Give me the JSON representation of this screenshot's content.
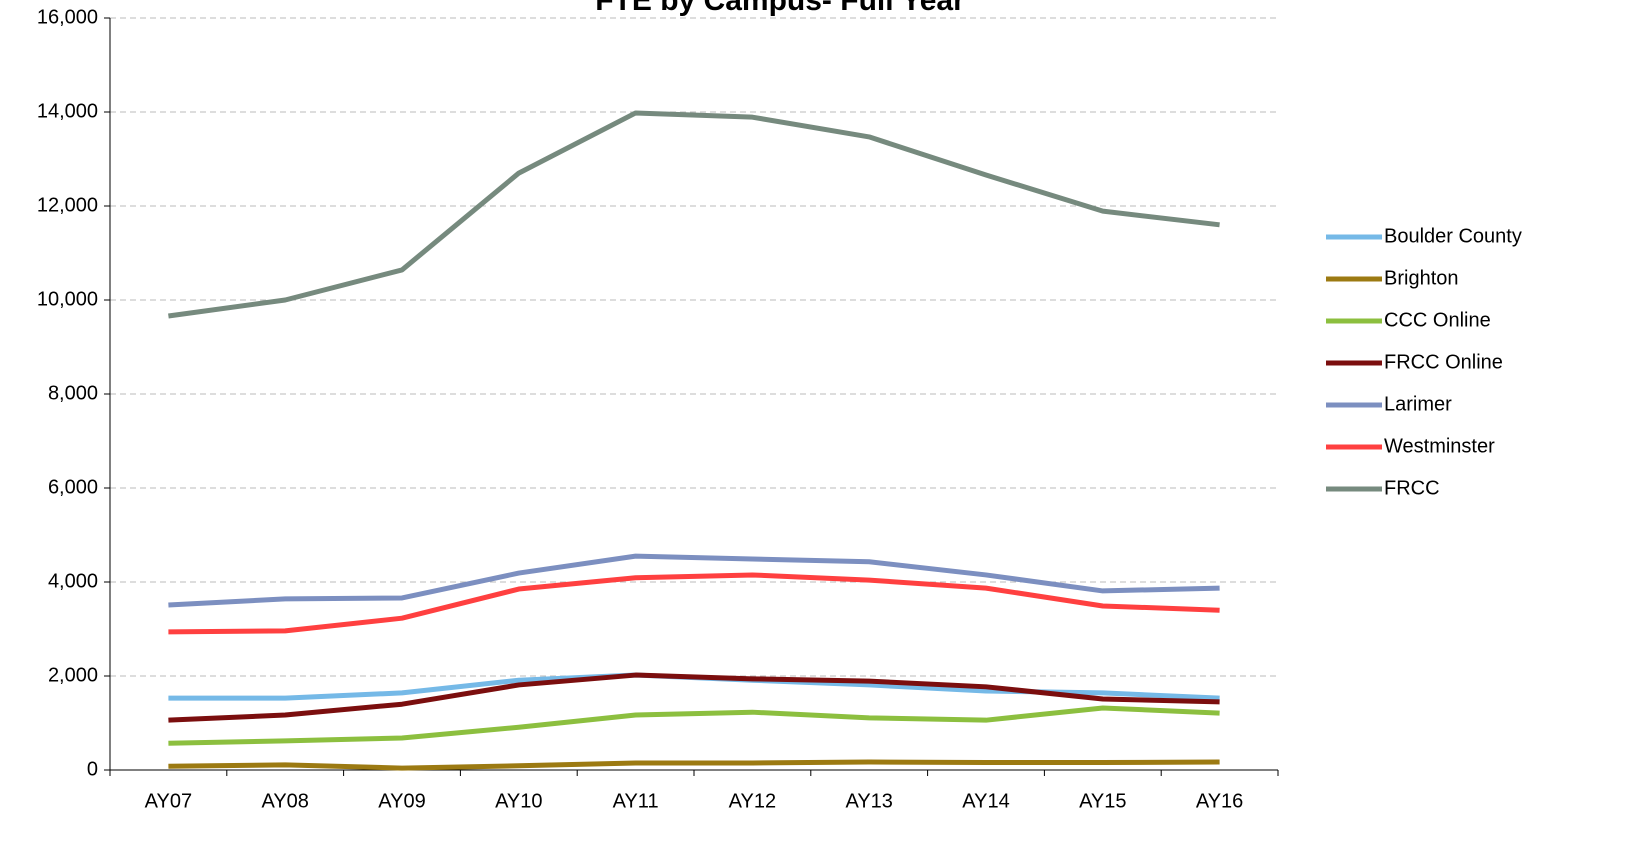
{
  "chart_data": {
    "type": "line",
    "title": "FTE by Campus- Full Year",
    "categories": [
      "AY07",
      "AY08",
      "AY09",
      "AY10",
      "AY11",
      "AY12",
      "AY13",
      "AY14",
      "AY15",
      "AY16"
    ],
    "ylim": [
      0,
      16000
    ],
    "yticks": [
      0,
      {
        "value": 2000,
        "label": "2,000"
      },
      {
        "value": 4000,
        "label": "4,000"
      },
      {
        "value": 6000,
        "label": "6,000"
      },
      {
        "value": 8000,
        "label": "8,000"
      },
      {
        "value": 10000,
        "label": "10,000"
      },
      {
        "value": 12000,
        "label": "12,000"
      },
      {
        "value": 14000,
        "label": "14,000"
      },
      {
        "value": 16000,
        "label": "16,000"
      }
    ],
    "grid": true,
    "legend": "right",
    "series": [
      {
        "name": "Boulder County",
        "color": "#75b9e7",
        "values": [
          1530,
          1530,
          1640,
          1910,
          2020,
          1910,
          1810,
          1680,
          1640,
          1530
        ]
      },
      {
        "name": "Brighton",
        "color": "#9c7a12",
        "values": [
          80,
          110,
          40,
          90,
          150,
          150,
          170,
          160,
          160,
          170
        ]
      },
      {
        "name": "CCC Online",
        "color": "#8cbf3f",
        "values": [
          570,
          620,
          680,
          910,
          1170,
          1230,
          1110,
          1060,
          1320,
          1210
        ]
      },
      {
        "name": "FRCC Online",
        "color": "#7b0e0e",
        "values": [
          1060,
          1170,
          1400,
          1810,
          2020,
          1940,
          1890,
          1770,
          1510,
          1450
        ]
      },
      {
        "name": "Larimer",
        "color": "#7c8fc0",
        "values": [
          3510,
          3640,
          3660,
          4190,
          4550,
          4490,
          4430,
          4150,
          3810,
          3870
        ]
      },
      {
        "name": "Westminster",
        "color": "#ff4040",
        "values": [
          2940,
          2960,
          3230,
          3850,
          4090,
          4150,
          4040,
          3870,
          3490,
          3400
        ]
      },
      {
        "name": "FRCC",
        "color": "#768a7e",
        "values": [
          9660,
          10000,
          10640,
          12700,
          13980,
          13890,
          13470,
          12660,
          11890,
          11600
        ]
      }
    ]
  }
}
